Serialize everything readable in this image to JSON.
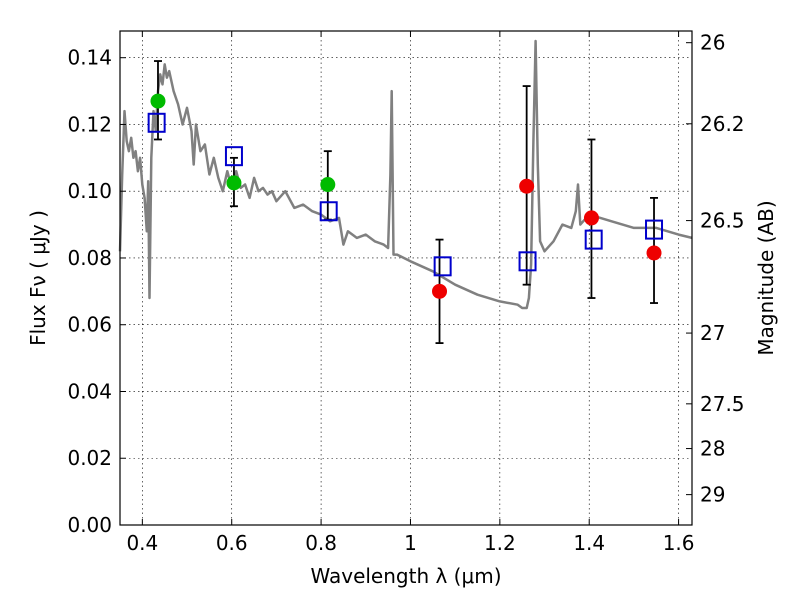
{
  "chart_data": {
    "type": "scatter",
    "xlabel": "Wavelength  λ (μm)",
    "ylabel": "Flux  Fν  ( μJy )",
    "ylabel_right": "Magnitude (AB)",
    "xlim": [
      0.35,
      1.63
    ],
    "ylim": [
      0.0,
      0.148
    ],
    "grid": true,
    "x_ticks": [
      0.4,
      0.6,
      0.8,
      1.0,
      1.2,
      1.4,
      1.6
    ],
    "x_tick_labels": [
      "0.4",
      "0.6",
      "0.8",
      "1",
      "1.2",
      "1.4",
      "1.6"
    ],
    "y_ticks": [
      0.0,
      0.02,
      0.04,
      0.06,
      0.08,
      0.1,
      0.12,
      0.14
    ],
    "y_tick_labels": [
      "0.00",
      "0.02",
      "0.04",
      "0.06",
      "0.08",
      "0.10",
      "0.12",
      "0.14"
    ],
    "right_ticks": [
      {
        "label": "26",
        "flux": 0.1445
      },
      {
        "label": "26.2",
        "flux": 0.1202
      },
      {
        "label": "26.5",
        "flux": 0.0912
      },
      {
        "label": "27",
        "flux": 0.0575
      },
      {
        "label": "27.5",
        "flux": 0.0363
      },
      {
        "label": "28",
        "flux": 0.0229
      },
      {
        "label": "29",
        "flux": 0.0091
      }
    ],
    "series": [
      {
        "marker": "circle",
        "color": "#00bb00",
        "x": [
          0.435,
          0.605,
          0.815
        ],
        "y": [
          0.127,
          0.1025,
          0.102
        ],
        "yerr_low": [
          0.1155,
          0.0955,
          0.0915
        ],
        "yerr_high": [
          0.139,
          0.11,
          0.112
        ]
      },
      {
        "marker": "circle",
        "color": "#ee0000",
        "x": [
          1.065,
          1.26,
          1.405,
          1.545
        ],
        "y": [
          0.07,
          0.1015,
          0.092,
          0.0815
        ],
        "yerr_low": [
          0.0545,
          0.072,
          0.068,
          0.0665
        ],
        "yerr_high": [
          0.0855,
          0.1315,
          0.1155,
          0.098
        ]
      },
      {
        "marker": "square",
        "color": "#0000cc",
        "x": [
          0.432,
          0.605,
          0.817,
          1.072,
          1.262,
          1.41,
          1.545
        ],
        "y": [
          0.1205,
          0.1105,
          0.094,
          0.0775,
          0.079,
          0.0855,
          0.0885
        ]
      },
      {
        "marker": "line",
        "color": "#808080",
        "x": [
          0.35,
          0.355,
          0.36,
          0.365,
          0.37,
          0.375,
          0.38,
          0.385,
          0.39,
          0.395,
          0.4,
          0.405,
          0.41,
          0.413,
          0.416,
          0.42,
          0.425,
          0.43,
          0.435,
          0.44,
          0.445,
          0.45,
          0.455,
          0.46,
          0.47,
          0.48,
          0.49,
          0.5,
          0.51,
          0.515,
          0.52,
          0.53,
          0.54,
          0.55,
          0.56,
          0.57,
          0.58,
          0.59,
          0.6,
          0.61,
          0.62,
          0.63,
          0.64,
          0.65,
          0.66,
          0.67,
          0.68,
          0.69,
          0.7,
          0.72,
          0.74,
          0.76,
          0.78,
          0.8,
          0.82,
          0.84,
          0.85,
          0.86,
          0.88,
          0.9,
          0.92,
          0.94,
          0.95,
          0.955,
          0.958,
          0.962,
          0.97,
          1.0,
          1.05,
          1.1,
          1.15,
          1.2,
          1.24,
          1.25,
          1.26,
          1.265,
          1.27,
          1.275,
          1.28,
          1.285,
          1.29,
          1.3,
          1.32,
          1.34,
          1.36,
          1.37,
          1.375,
          1.38,
          1.4,
          1.45,
          1.5,
          1.55,
          1.6,
          1.63
        ],
        "y": [
          0.082,
          0.105,
          0.124,
          0.115,
          0.112,
          0.116,
          0.11,
          0.112,
          0.106,
          0.11,
          0.102,
          0.098,
          0.088,
          0.103,
          0.068,
          0.11,
          0.124,
          0.118,
          0.13,
          0.135,
          0.132,
          0.138,
          0.134,
          0.136,
          0.13,
          0.126,
          0.12,
          0.125,
          0.118,
          0.108,
          0.12,
          0.112,
          0.114,
          0.105,
          0.11,
          0.104,
          0.1,
          0.106,
          0.101,
          0.106,
          0.101,
          0.102,
          0.098,
          0.104,
          0.1,
          0.101,
          0.099,
          0.1,
          0.097,
          0.1,
          0.095,
          0.096,
          0.094,
          0.093,
          0.091,
          0.092,
          0.084,
          0.088,
          0.086,
          0.087,
          0.085,
          0.084,
          0.083,
          0.105,
          0.13,
          0.081,
          0.081,
          0.079,
          0.076,
          0.072,
          0.069,
          0.067,
          0.066,
          0.065,
          0.065,
          0.068,
          0.078,
          0.115,
          0.145,
          0.108,
          0.085,
          0.082,
          0.085,
          0.09,
          0.089,
          0.094,
          0.102,
          0.09,
          0.093,
          0.091,
          0.089,
          0.089,
          0.087,
          0.086
        ]
      }
    ]
  }
}
